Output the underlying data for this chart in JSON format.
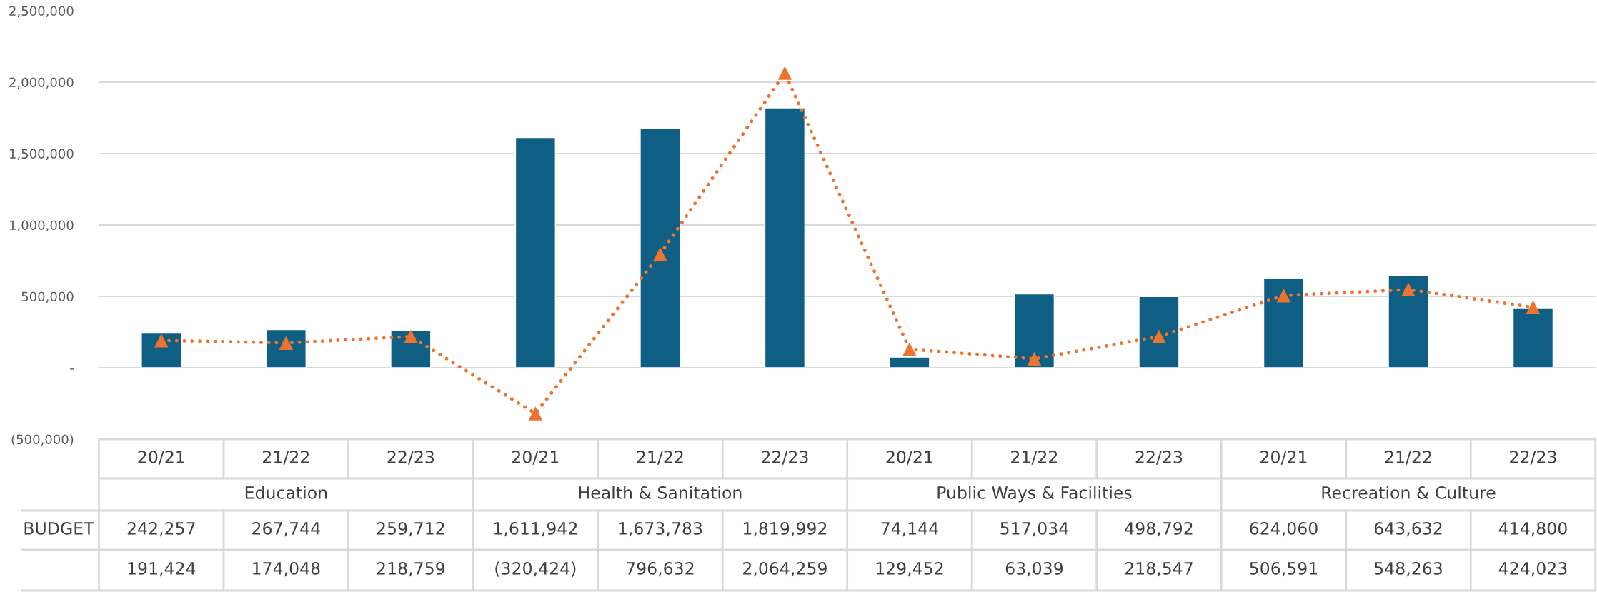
{
  "chart_data": {
    "type": "bar",
    "categories": [
      "20/21",
      "21/22",
      "22/23",
      "20/21",
      "21/22",
      "22/23",
      "20/21",
      "21/22",
      "22/23",
      "20/21",
      "21/22",
      "22/23"
    ],
    "annotations": [
      "Education",
      "Health & Sanitation",
      "Public Ways & Facilities",
      "Recreation & Culture"
    ],
    "series": [
      {
        "name": "BUDGET",
        "color": "#0f5f85",
        "values": [
          242257,
          267744,
          259712,
          1611942,
          1673783,
          1819992,
          74144,
          517034,
          498792,
          624060,
          643632,
          414800
        ],
        "value_labels": [
          "242,257",
          "267,744",
          "259,712",
          "1,611,942",
          "1,673,783",
          "1,819,992",
          "74,144",
          "517,034",
          "498,792",
          "624,060",
          "643,632",
          "414,800"
        ]
      },
      {
        "type": "line",
        "color": "#ed7331",
        "marker": "triangle",
        "line_style": "dotted",
        "values": [
          191424,
          174048,
          218759,
          -320424,
          796632,
          2064259,
          129452,
          63039,
          218547,
          506591,
          548263,
          424023
        ],
        "value_labels": [
          "191,424",
          "174,048",
          "218,759",
          "(320,424)",
          "796,632",
          "2,064,259",
          "129,452",
          "63,039",
          "218,547",
          "506,591",
          "548,263",
          "424,023"
        ]
      }
    ],
    "ylim": [
      -500000,
      2500000
    ],
    "yticks": [
      {
        "value": -500000,
        "label": "(500,000)"
      },
      {
        "value": 0,
        "label": "-"
      },
      {
        "value": 500000,
        "label": "500,000"
      },
      {
        "value": 1000000,
        "label": "1,000,000"
      },
      {
        "value": 1500000,
        "label": "1,500,000"
      },
      {
        "value": 2000000,
        "label": "2,000,000"
      },
      {
        "value": 2500000,
        "label": "2,500,000"
      }
    ],
    "grid": "y"
  }
}
